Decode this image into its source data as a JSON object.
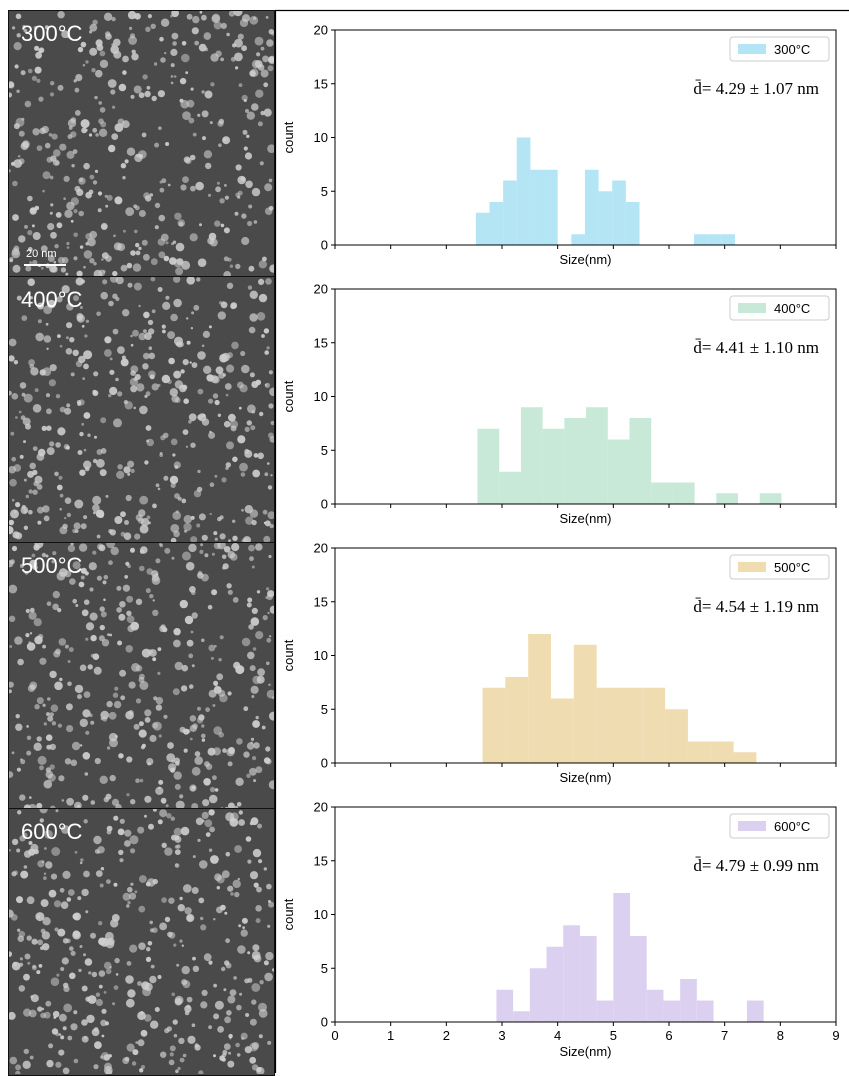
{
  "panel_images": [
    {
      "label": "300°C",
      "scale_bar": "20 nm"
    },
    {
      "label": "400°C"
    },
    {
      "label": "500°C"
    },
    {
      "label": "600°C"
    }
  ],
  "colors": {
    "image_background": "#4a4a4a",
    "particle": "#cfcfcf"
  },
  "chart_data": [
    {
      "type": "bar",
      "subtype": "histogram",
      "legend": "300°C",
      "legend_position": "top-right",
      "annotation": "d̄= 4.29 ± 1.07 nm",
      "color": "#b3e5f5",
      "xlabel": "Size(nm)",
      "ylabel": "count",
      "xlim": [
        0,
        9
      ],
      "ylim": [
        0,
        20
      ],
      "yticks": [
        0,
        5,
        10,
        15,
        20
      ],
      "xticks": [
        0,
        1,
        2,
        3,
        4,
        5,
        6,
        7,
        8,
        9
      ],
      "show_xtick_labels": false,
      "bin_width": 0.245,
      "bins": [
        {
          "start": 2.53,
          "count": 3
        },
        {
          "start": 2.775,
          "count": 4
        },
        {
          "start": 3.02,
          "count": 6
        },
        {
          "start": 3.265,
          "count": 10
        },
        {
          "start": 3.51,
          "count": 7
        },
        {
          "start": 3.755,
          "count": 7
        },
        {
          "start": 4.0,
          "count": 0
        },
        {
          "start": 4.245,
          "count": 1
        },
        {
          "start": 4.49,
          "count": 7
        },
        {
          "start": 4.735,
          "count": 5
        },
        {
          "start": 4.98,
          "count": 6
        },
        {
          "start": 5.225,
          "count": 4
        },
        {
          "start": 6.45,
          "count": 1
        },
        {
          "start": 6.695,
          "count": 1
        },
        {
          "start": 6.94,
          "count": 1
        }
      ]
    },
    {
      "type": "bar",
      "subtype": "histogram",
      "legend": "400°C",
      "legend_position": "top-right",
      "annotation": "d̄= 4.41 ± 1.10 nm",
      "color": "#c8e8d8",
      "xlabel": "Size(nm)",
      "ylabel": "count",
      "xlim": [
        0,
        9
      ],
      "ylim": [
        0,
        20
      ],
      "yticks": [
        0,
        5,
        10,
        15,
        20
      ],
      "xticks": [
        0,
        1,
        2,
        3,
        4,
        5,
        6,
        7,
        8,
        9
      ],
      "show_xtick_labels": false,
      "bin_width": 0.39,
      "bins": [
        {
          "start": 2.56,
          "count": 7
        },
        {
          "start": 2.95,
          "count": 3
        },
        {
          "start": 3.34,
          "count": 9
        },
        {
          "start": 3.73,
          "count": 7
        },
        {
          "start": 4.12,
          "count": 8
        },
        {
          "start": 4.51,
          "count": 9
        },
        {
          "start": 4.9,
          "count": 6
        },
        {
          "start": 5.29,
          "count": 8
        },
        {
          "start": 5.68,
          "count": 2
        },
        {
          "start": 6.07,
          "count": 2
        },
        {
          "start": 6.85,
          "count": 1
        },
        {
          "start": 7.63,
          "count": 1
        }
      ]
    },
    {
      "type": "bar",
      "subtype": "histogram",
      "legend": "500°C",
      "legend_position": "top-right",
      "annotation": "d̄= 4.54 ± 1.19 nm",
      "color": "#efdcb0",
      "xlabel": "Size(nm)",
      "ylabel": "count",
      "xlim": [
        0,
        9
      ],
      "ylim": [
        0,
        20
      ],
      "yticks": [
        0,
        5,
        10,
        15,
        20
      ],
      "xticks": [
        0,
        1,
        2,
        3,
        4,
        5,
        6,
        7,
        8,
        9
      ],
      "show_xtick_labels": false,
      "bin_width": 0.41,
      "bins": [
        {
          "start": 2.65,
          "count": 7
        },
        {
          "start": 3.06,
          "count": 8
        },
        {
          "start": 3.47,
          "count": 12
        },
        {
          "start": 3.88,
          "count": 6
        },
        {
          "start": 4.29,
          "count": 11
        },
        {
          "start": 4.7,
          "count": 7
        },
        {
          "start": 5.11,
          "count": 7
        },
        {
          "start": 5.52,
          "count": 7
        },
        {
          "start": 5.93,
          "count": 5
        },
        {
          "start": 6.34,
          "count": 2
        },
        {
          "start": 6.75,
          "count": 2
        },
        {
          "start": 7.16,
          "count": 1
        }
      ]
    },
    {
      "type": "bar",
      "subtype": "histogram",
      "legend": "600°C",
      "legend_position": "top-right",
      "annotation": "d̄= 4.79 ± 0.99 nm",
      "color": "#dcd0f0",
      "xlabel": "Size(nm)",
      "ylabel": "count",
      "xlim": [
        0,
        9
      ],
      "ylim": [
        0,
        20
      ],
      "yticks": [
        0,
        5,
        10,
        15,
        20
      ],
      "xticks": [
        0,
        1,
        2,
        3,
        4,
        5,
        6,
        7,
        8,
        9
      ],
      "show_xtick_labels": true,
      "bin_width": 0.3,
      "bins": [
        {
          "start": 2.9,
          "count": 3
        },
        {
          "start": 3.2,
          "count": 1
        },
        {
          "start": 3.5,
          "count": 5
        },
        {
          "start": 3.8,
          "count": 7
        },
        {
          "start": 4.1,
          "count": 9
        },
        {
          "start": 4.4,
          "count": 8
        },
        {
          "start": 4.7,
          "count": 2
        },
        {
          "start": 5.0,
          "count": 12
        },
        {
          "start": 5.3,
          "count": 8
        },
        {
          "start": 5.6,
          "count": 3
        },
        {
          "start": 5.9,
          "count": 2
        },
        {
          "start": 6.2,
          "count": 4
        },
        {
          "start": 6.5,
          "count": 2
        },
        {
          "start": 7.4,
          "count": 2
        }
      ]
    }
  ]
}
